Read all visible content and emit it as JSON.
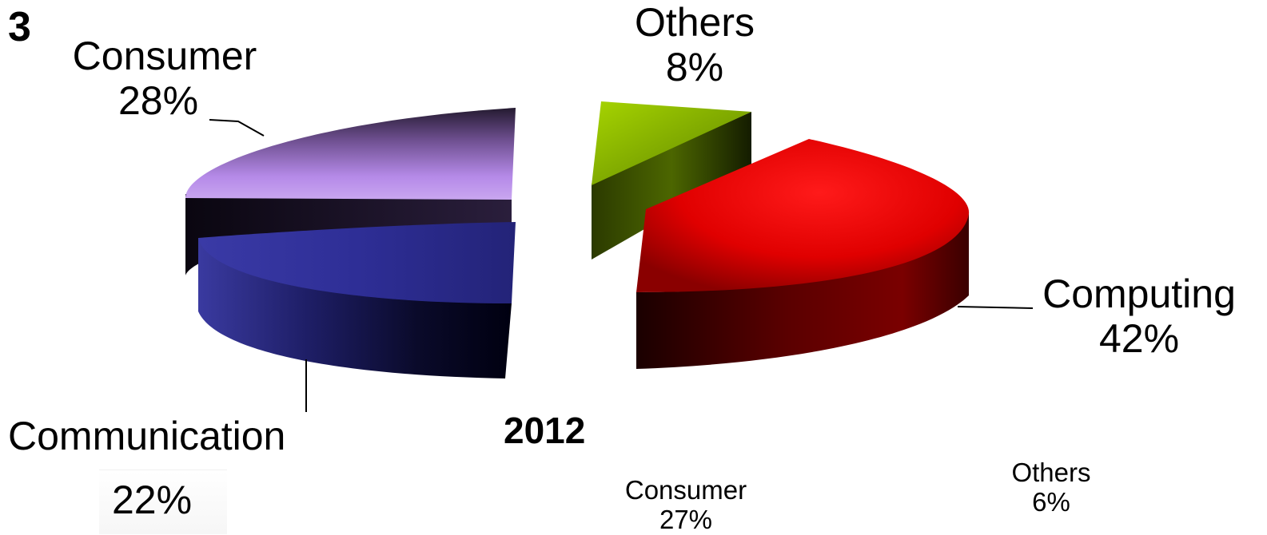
{
  "page_label": "3",
  "chart_data": {
    "type": "pie",
    "style": "3d-exploded",
    "year": "2012",
    "slices": [
      {
        "name": "Computing",
        "value": 42,
        "pct_label": "42%",
        "color": "#e00000"
      },
      {
        "name": "Others",
        "value": 8,
        "pct_label": "8%",
        "color": "#8fbf00"
      },
      {
        "name": "Consumer",
        "value": 28,
        "pct_label": "28%",
        "color": "#b58ae8"
      },
      {
        "name": "Communication",
        "value": 22,
        "pct_label": "22%",
        "color": "#2e2e8c"
      }
    ],
    "second_chart_labels": [
      {
        "name": "Consumer",
        "pct_label": "27%"
      },
      {
        "name": "Others",
        "pct_label": "6%"
      }
    ]
  }
}
